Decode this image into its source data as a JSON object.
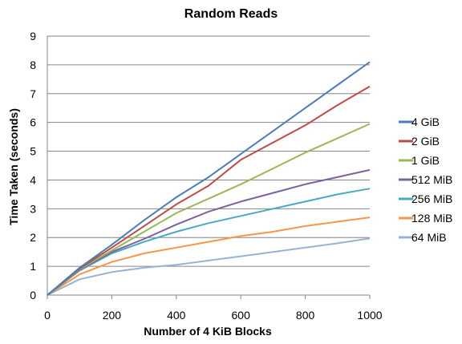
{
  "chart_data": {
    "type": "line",
    "title": "Random Reads",
    "xlabel": "Number of 4 KiB Blocks",
    "ylabel": "Time Taken (seconds)",
    "xlim": [
      0,
      1000
    ],
    "ylim": [
      0,
      9
    ],
    "xticks": [
      0,
      200,
      400,
      600,
      800,
      1000
    ],
    "yticks": [
      0,
      1,
      2,
      3,
      4,
      5,
      6,
      7,
      8,
      9
    ],
    "grid": "horizontal",
    "legend_position": "right",
    "x": [
      0,
      100,
      200,
      300,
      400,
      500,
      600,
      700,
      800,
      900,
      1000
    ],
    "series": [
      {
        "name": "4 GiB",
        "color": "#4a7ebb",
        "values": [
          0,
          0.95,
          1.75,
          2.6,
          3.4,
          4.1,
          4.9,
          5.7,
          6.5,
          7.3,
          8.1
        ]
      },
      {
        "name": "2 GiB",
        "color": "#be4b48",
        "values": [
          0,
          0.92,
          1.65,
          2.4,
          3.15,
          3.8,
          4.7,
          5.3,
          5.9,
          6.6,
          7.25
        ]
      },
      {
        "name": "1 GiB",
        "color": "#98b954",
        "values": [
          0,
          0.9,
          1.55,
          2.2,
          2.85,
          3.35,
          3.85,
          4.4,
          4.95,
          5.45,
          5.95
        ]
      },
      {
        "name": "512 MiB",
        "color": "#7d60a0",
        "values": [
          0,
          0.88,
          1.5,
          1.95,
          2.45,
          2.9,
          3.25,
          3.55,
          3.85,
          4.1,
          4.35
        ]
      },
      {
        "name": "256 MiB",
        "color": "#46aac5",
        "values": [
          0,
          0.85,
          1.45,
          1.85,
          2.2,
          2.5,
          2.75,
          3.0,
          3.25,
          3.5,
          3.7
        ]
      },
      {
        "name": "128 MiB",
        "color": "#f79646",
        "values": [
          0,
          0.72,
          1.15,
          1.45,
          1.65,
          1.85,
          2.05,
          2.2,
          2.4,
          2.55,
          2.7
        ]
      },
      {
        "name": "64 MiB",
        "color": "#95b3d7",
        "values": [
          0,
          0.55,
          0.8,
          0.95,
          1.05,
          1.2,
          1.35,
          1.5,
          1.65,
          1.8,
          1.97
        ]
      }
    ]
  }
}
